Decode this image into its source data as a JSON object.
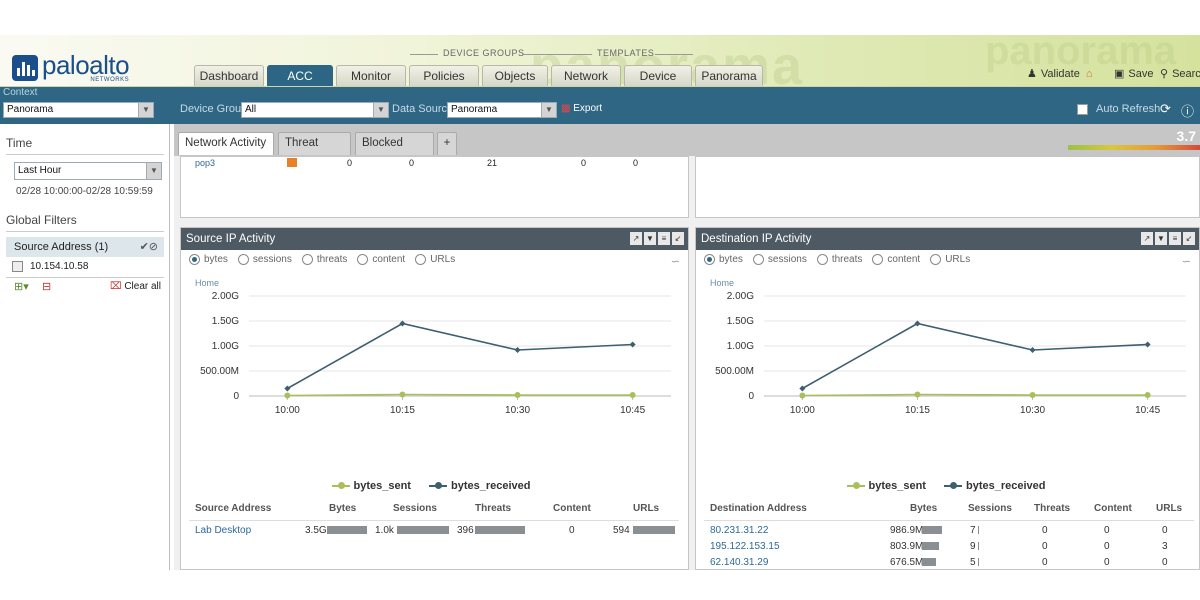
{
  "brand": {
    "name": "paloalto",
    "sub": "NETWORKS"
  },
  "header": {
    "group_labels": [
      "DEVICE GROUPS",
      "TEMPLATES"
    ],
    "tabs": [
      "Dashboard",
      "ACC",
      "Monitor",
      "Policies",
      "Objects",
      "Network",
      "Device",
      "Panorama"
    ],
    "active_tab": "ACC",
    "watermark": "panorama",
    "actions": [
      "Validate",
      "Save",
      "Search"
    ]
  },
  "context": {
    "label": "Context",
    "value": "Panorama",
    "device_group_label": "Device Group",
    "device_group_value": "All",
    "data_source_label": "Data Source",
    "data_source_value": "Panorama",
    "export_label": "Export",
    "auto_refresh_label": "Auto Refresh"
  },
  "sidebar": {
    "time_title": "Time",
    "time_value": "Last Hour",
    "time_range": "02/28 10:00:00-02/28 10:59:59",
    "filters_title": "Global Filters",
    "filter_label": "Source Address (1)",
    "filter_value": "10.154.10.58",
    "clear_all": "Clear all"
  },
  "subtabs": [
    "Network Activity",
    "Threat Activity",
    "Blocked Activity",
    "+"
  ],
  "active_subtab": "Network Activity",
  "risk_score": "3.7",
  "top_row": {
    "app": "pop3",
    "values": [
      "0",
      "0",
      "21",
      "0",
      "0"
    ]
  },
  "radios": [
    "bytes",
    "sessions",
    "threats",
    "content",
    "URLs"
  ],
  "breadcrumb": "Home",
  "panels": [
    {
      "title": "Source IP Activity",
      "columns": [
        "Source Address",
        "Bytes",
        "Sessions",
        "Threats",
        "Content",
        "URLs"
      ],
      "rows": [
        {
          "address": "Lab Desktop",
          "bytes": "3.5G",
          "sessions": "1.0k",
          "threats": "396",
          "content": "0",
          "urls": "594"
        }
      ]
    },
    {
      "title": "Destination IP Activity",
      "columns": [
        "Destination Address",
        "Bytes",
        "Sessions",
        "Threats",
        "Content",
        "URLs"
      ],
      "rows": [
        {
          "address": "80.231.31.22",
          "bytes": "986.9M",
          "sessions": "7",
          "threats": "0",
          "content": "0",
          "urls": "0"
        },
        {
          "address": "195.122.153.15",
          "bytes": "803.9M",
          "sessions": "9",
          "threats": "0",
          "content": "0",
          "urls": "3"
        },
        {
          "address": "62.140.31.29",
          "bytes": "676.5M",
          "sessions": "5",
          "threats": "0",
          "content": "0",
          "urls": "0"
        }
      ]
    }
  ],
  "chart_data": [
    {
      "type": "line",
      "x": [
        "10:00",
        "10:15",
        "10:30",
        "10:45"
      ],
      "x_positions_min": [
        0,
        15,
        30,
        45
      ],
      "xlim": [
        -5,
        50
      ],
      "ylim": [
        0,
        2.0
      ],
      "y_unit": "G",
      "ytick_labels": [
        "0",
        "500.00M",
        "1.00G",
        "1.50G",
        "2.00G"
      ],
      "series": [
        {
          "name": "bytes_sent",
          "color": "#a8bf5a",
          "x": [
            0,
            15,
            30,
            45
          ],
          "values": [
            0.01,
            0.03,
            0.02,
            0.02
          ]
        },
        {
          "name": "bytes_received",
          "color": "#3d5f6e",
          "x": [
            0,
            15,
            30,
            45
          ],
          "values": [
            0.15,
            1.45,
            0.92,
            1.03
          ]
        }
      ],
      "legend": "bottom"
    },
    {
      "type": "line",
      "x": [
        "10:00",
        "10:15",
        "10:30",
        "10:45"
      ],
      "x_positions_min": [
        0,
        15,
        30,
        45
      ],
      "xlim": [
        -5,
        50
      ],
      "ylim": [
        0,
        2.0
      ],
      "y_unit": "G",
      "ytick_labels": [
        "0",
        "500.00M",
        "1.00G",
        "1.50G",
        "2.00G"
      ],
      "series": [
        {
          "name": "bytes_sent",
          "color": "#a8bf5a",
          "x": [
            0,
            15,
            30,
            45
          ],
          "values": [
            0.01,
            0.03,
            0.02,
            0.02
          ]
        },
        {
          "name": "bytes_received",
          "color": "#3d5f6e",
          "x": [
            0,
            15,
            30,
            45
          ],
          "values": [
            0.15,
            1.45,
            0.92,
            1.03
          ]
        }
      ],
      "legend": "bottom"
    }
  ]
}
